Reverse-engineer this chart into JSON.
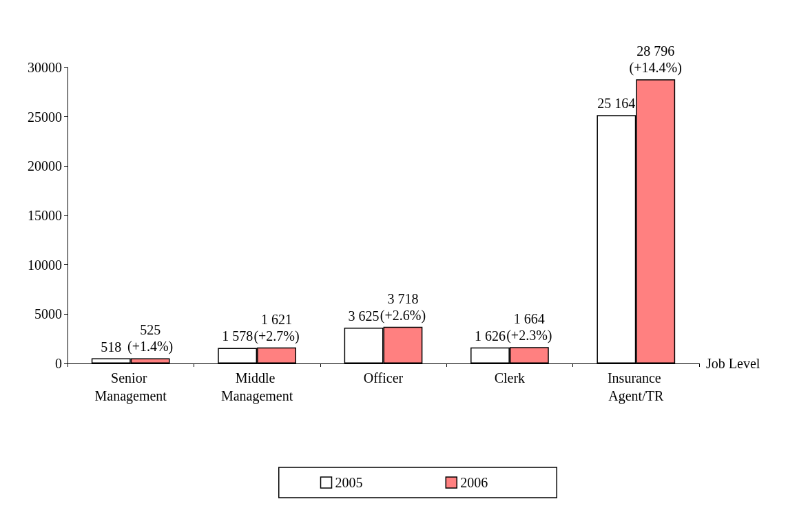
{
  "chart_data": {
    "type": "bar",
    "xlabel": "Job Level",
    "categories": [
      "Senior Management",
      "Middle Management",
      "Officer",
      "Clerk",
      "Insurance Agent/TR"
    ],
    "series": [
      {
        "name": "2005",
        "color": "#ffffff",
        "values": [
          518,
          1578,
          3625,
          1626,
          25164
        ],
        "value_labels": [
          "518",
          "1 578",
          "3 625",
          "1 626",
          "25 164"
        ]
      },
      {
        "name": "2006",
        "color": "#ff8080",
        "values": [
          525,
          1621,
          3718,
          1664,
          28796
        ],
        "value_labels": [
          "525\n(+1.4%)",
          "1 621\n(+2.7%)",
          "3 718\n(+2.6%)",
          "1 664\n(+2.3%)",
          "28 796\n(+14.4%)"
        ]
      }
    ],
    "ylim": [
      0,
      30000
    ],
    "yticks": [
      0,
      5000,
      10000,
      15000,
      20000,
      25000,
      30000
    ],
    "grid": false,
    "legend": "bottom"
  }
}
